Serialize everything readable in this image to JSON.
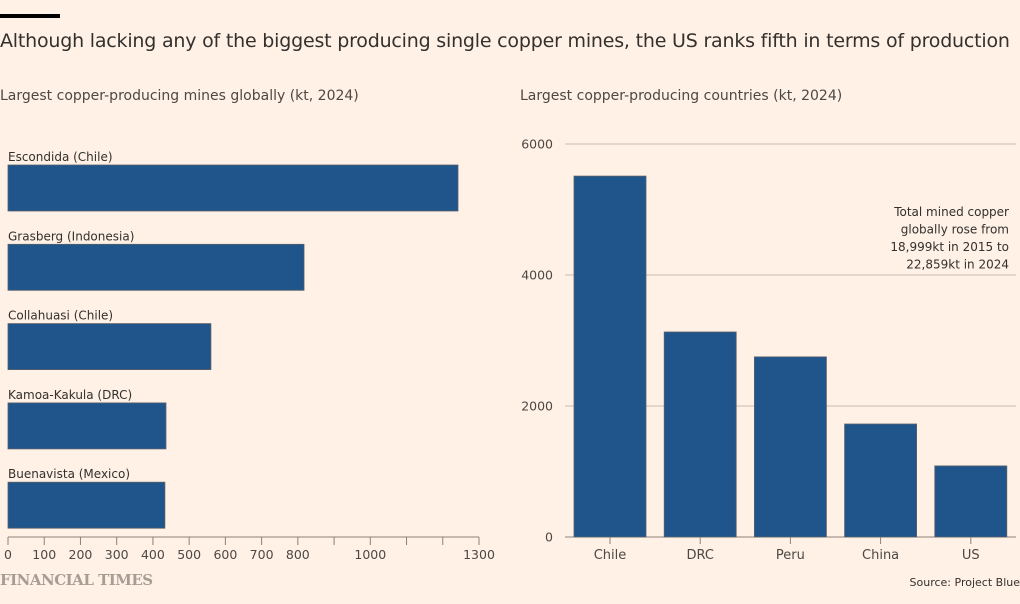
{
  "title": "Although lacking any of the biggest producing single copper mines, the US ranks fifth in terms of production",
  "brand": "FINANCIAL TIMES",
  "source": "Source: Project Blue",
  "colors": {
    "bar": "#1F558B",
    "background": "#FFF1E5",
    "grid": "#c9bbb0",
    "axis": "#8c8179"
  },
  "chart_data": [
    {
      "type": "bar",
      "orientation": "horizontal",
      "title": "Largest copper-producing mines globally (kt, 2024)",
      "categories": [
        "Escondida (Chile)",
        "Grasberg (Indonesia)",
        "Collahuasi (Chile)",
        "Kamoa-Kakula (DRC)",
        "Buenavista (Mexico)"
      ],
      "values": [
        1242,
        817,
        560,
        436,
        433
      ],
      "xlim": [
        0,
        1300
      ],
      "xticks": [
        0,
        100,
        200,
        300,
        400,
        500,
        600,
        700,
        800,
        900,
        1000,
        1100,
        1200,
        1300
      ],
      "xtick_labels": [
        "0",
        "100",
        "200",
        "300",
        "400",
        "500",
        "600",
        "700",
        "800",
        "",
        "1000",
        "",
        "",
        "1300"
      ],
      "xlabel": "",
      "ylabel": "",
      "grid": false
    },
    {
      "type": "bar",
      "orientation": "vertical",
      "title": "Largest copper-producing countries (kt, 2024)",
      "categories": [
        "Chile",
        "DRC",
        "Peru",
        "China",
        "US"
      ],
      "values": [
        5510,
        3130,
        2750,
        1725,
        1085
      ],
      "ylim": [
        0,
        6000
      ],
      "yticks": [
        0,
        2000,
        4000,
        6000
      ],
      "ytick_labels": [
        "0",
        "2000",
        "4000",
        "6000"
      ],
      "grid": true,
      "annotation": [
        "Total mined copper",
        "globally rose from",
        "18,999kt in 2015 to",
        "22,859kt in 2024"
      ]
    }
  ]
}
